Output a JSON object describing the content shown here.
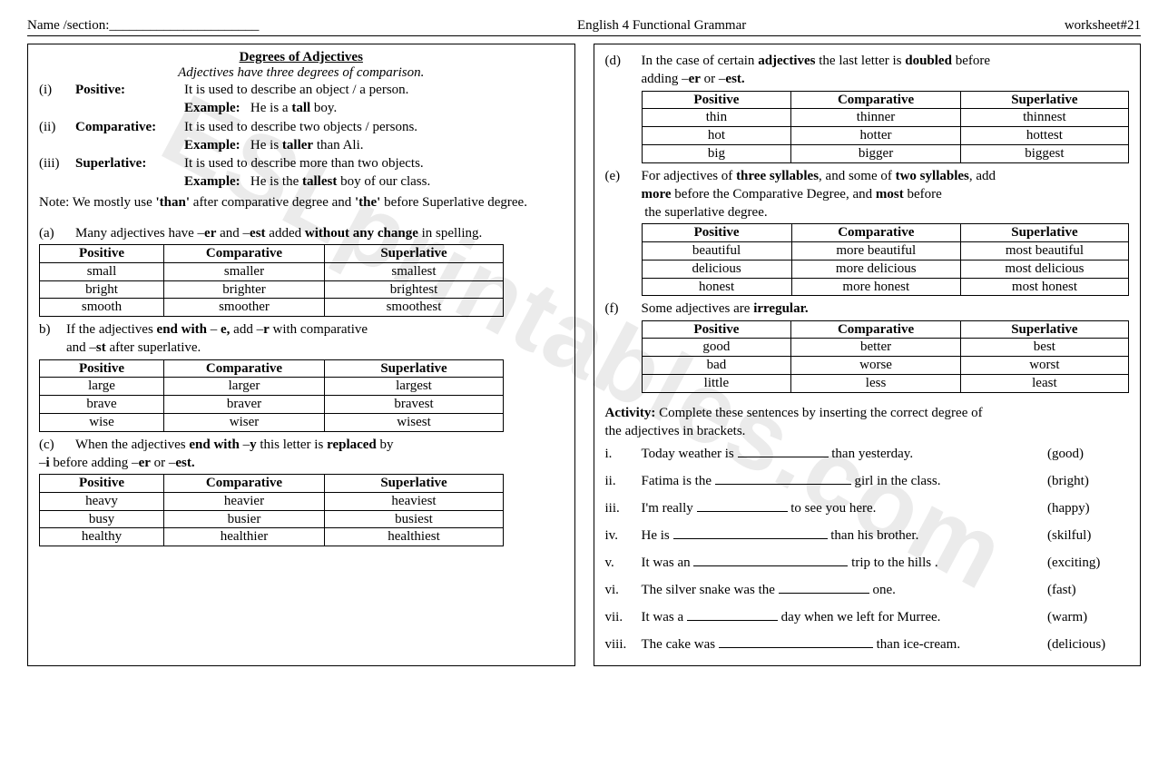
{
  "header": {
    "name_label": "Name /section:______________________",
    "center": "English 4 Functional Grammar",
    "right": "worksheet#21"
  },
  "watermark": "ESLprintables.com",
  "left": {
    "title": "Degrees of Adjectives",
    "subtitle": "Adjectives have three degrees of comparison.",
    "defs": [
      {
        "num": "(i)",
        "label": "Positive:",
        "desc": "It is used to describe an object / a person.",
        "ex_label": "Example:",
        "ex_pre": "He is a ",
        "ex_b": "tall",
        "ex_post": " boy."
      },
      {
        "num": "(ii)",
        "label": "Comparative:",
        "desc": "It is used to describe two objects / persons.",
        "ex_label": "Example:",
        "ex_pre": "He is ",
        "ex_b": "taller",
        "ex_post": " than Ali."
      },
      {
        "num": "(iii)",
        "label": "Superlative:",
        "desc": "It is used to describe more than two objects.",
        "ex_label": "Example:",
        "ex_pre": "He is the ",
        "ex_b": "tallest",
        "ex_post": " boy of our class."
      }
    ],
    "note_pre": "Note: We mostly use ",
    "note_b1": "'than'",
    "note_mid": " after comparative degree and ",
    "note_b2": "'the'",
    "note_post": " before Superlative degree.",
    "rule_a": {
      "num": "(a)",
      "t1": "Many adjectives have –",
      "b1": "er",
      "t2": " and –",
      "b2": "est",
      "t3": " added ",
      "b3": "without any change",
      "t4": " in spelling."
    },
    "table_a": {
      "headers": [
        "Positive",
        "Comparative",
        "Superlative"
      ],
      "rows": [
        [
          "small",
          "smaller",
          "smallest"
        ],
        [
          "bright",
          "brighter",
          "brightest"
        ],
        [
          "smooth",
          "smoother",
          "smoothest"
        ]
      ],
      "col_widths": [
        "120px",
        "160px",
        "180px"
      ]
    },
    "rule_b": {
      "num": "b)",
      "t1": "If the adjectives ",
      "b1": "end with",
      "t2": "  – ",
      "b2": "e,",
      "t3": " add –",
      "b3": "r",
      "t4": " with  comparative",
      "line2": "and –",
      "b4": "st",
      "t5": " after superlative."
    },
    "table_b": {
      "headers": [
        "Positive",
        "Comparative",
        "Superlative"
      ],
      "rows": [
        [
          "large",
          "larger",
          "largest"
        ],
        [
          "brave",
          "braver",
          "bravest"
        ],
        [
          "wise",
          "wiser",
          "wisest"
        ]
      ],
      "col_widths": [
        "120px",
        "160px",
        "180px"
      ]
    },
    "rule_c": {
      "num": "(c)",
      "t1": "When the adjectives ",
      "b1": "end with",
      "t2": " –",
      "b2": "y",
      "t3": " this letter is ",
      "b3": "replaced",
      "t4": " by",
      "line2": " –",
      "b4": "i",
      "t5": " before adding –",
      "b5": "er",
      "t6": "  or –",
      "b6": "est."
    },
    "table_c": {
      "headers": [
        "Positive",
        "Comparative",
        "Superlative"
      ],
      "rows": [
        [
          "heavy",
          "heavier",
          "heaviest"
        ],
        [
          "busy",
          "busier",
          "busiest"
        ],
        [
          "healthy",
          "healthier",
          "healthiest"
        ]
      ],
      "col_widths": [
        "120px",
        "160px",
        "180px"
      ]
    }
  },
  "right": {
    "rule_d": {
      "num": "(d)",
      "t1": "In the case of certain ",
      "b1": "adjectives",
      "t2": " the last letter is ",
      "b2": "doubled",
      "t3": " before",
      "line2": "adding –",
      "b3": "er",
      "t4": " or –",
      "b4": "est."
    },
    "table_d": {
      "headers": [
        "Positive",
        "Comparative",
        "Superlative"
      ],
      "rows": [
        [
          "thin",
          "thinner",
          "thinnest"
        ],
        [
          "hot",
          "hotter",
          "hottest"
        ],
        [
          "big",
          "bigger",
          "biggest"
        ]
      ],
      "col_widths": [
        "160px",
        "180px",
        "180px"
      ]
    },
    "rule_e": {
      "num": "(e)",
      "t1": "For adjectives of ",
      "b1": "three syllables",
      "t2": ", and some of ",
      "b2": "two syllables",
      "t3": ", add",
      "line2_b1": "more",
      "t4": "  before  the Comparative Degree, and ",
      "b3": "most",
      "t5": " before",
      "line3": " the superlative degree."
    },
    "table_e": {
      "headers": [
        "Positive",
        "Comparative",
        "Superlative"
      ],
      "rows": [
        [
          "beautiful",
          "more beautiful",
          "most beautiful"
        ],
        [
          "delicious",
          "more delicious",
          "most delicious"
        ],
        [
          "honest",
          "more honest",
          "most honest"
        ]
      ],
      "col_widths": [
        "160px",
        "180px",
        "180px"
      ]
    },
    "rule_f": {
      "num": "(f)",
      "t1": "Some adjectives are ",
      "b1": "irregular."
    },
    "table_f": {
      "headers": [
        "Positive",
        "Comparative",
        "Superlative"
      ],
      "rows": [
        [
          "good",
          "better",
          "best"
        ],
        [
          "bad",
          "worse",
          "worst"
        ],
        [
          "little",
          "less",
          "least"
        ]
      ],
      "col_widths": [
        "160px",
        "180px",
        "180px"
      ]
    },
    "activity_label": "Activity:",
    "activity_text": " Complete these sentences by inserting the correct degree of",
    "activity_text2": " the adjectives in brackets.",
    "items": [
      {
        "num": "i.",
        "pre": "Today weather is ",
        "blank": "w1",
        "post": " than yesterday.",
        "hint": "(good)"
      },
      {
        "num": "ii.",
        "pre": "Fatima is the  ",
        "blank": "w2",
        "post": " girl in the class.",
        "hint": "(bright)"
      },
      {
        "num": "iii.",
        "pre": "I'm really ",
        "blank": "w1",
        "post": " to see you here.",
        "hint": "(happy)"
      },
      {
        "num": "iv.",
        "pre": "He is ",
        "blank": "w3",
        "post": " than his brother.",
        "hint": "(skilful)"
      },
      {
        "num": "v.",
        "pre": "It was  an ",
        "blank": "w3",
        "post": " trip to the hills .",
        "hint": "(exciting)"
      },
      {
        "num": "vi.",
        "pre": "The silver snake was the ",
        "blank": "w1",
        "post": " one.",
        "hint": "(fast)"
      },
      {
        "num": "vii.",
        "pre": "It was a ",
        "blank": "w1",
        "post": " day when we left for Murree.",
        "hint": "(warm)"
      },
      {
        "num": "viii.",
        "pre": "The cake was ",
        "blank": "w3",
        "post": " than ice-cream.",
        "hint": "(delicious)"
      }
    ]
  }
}
